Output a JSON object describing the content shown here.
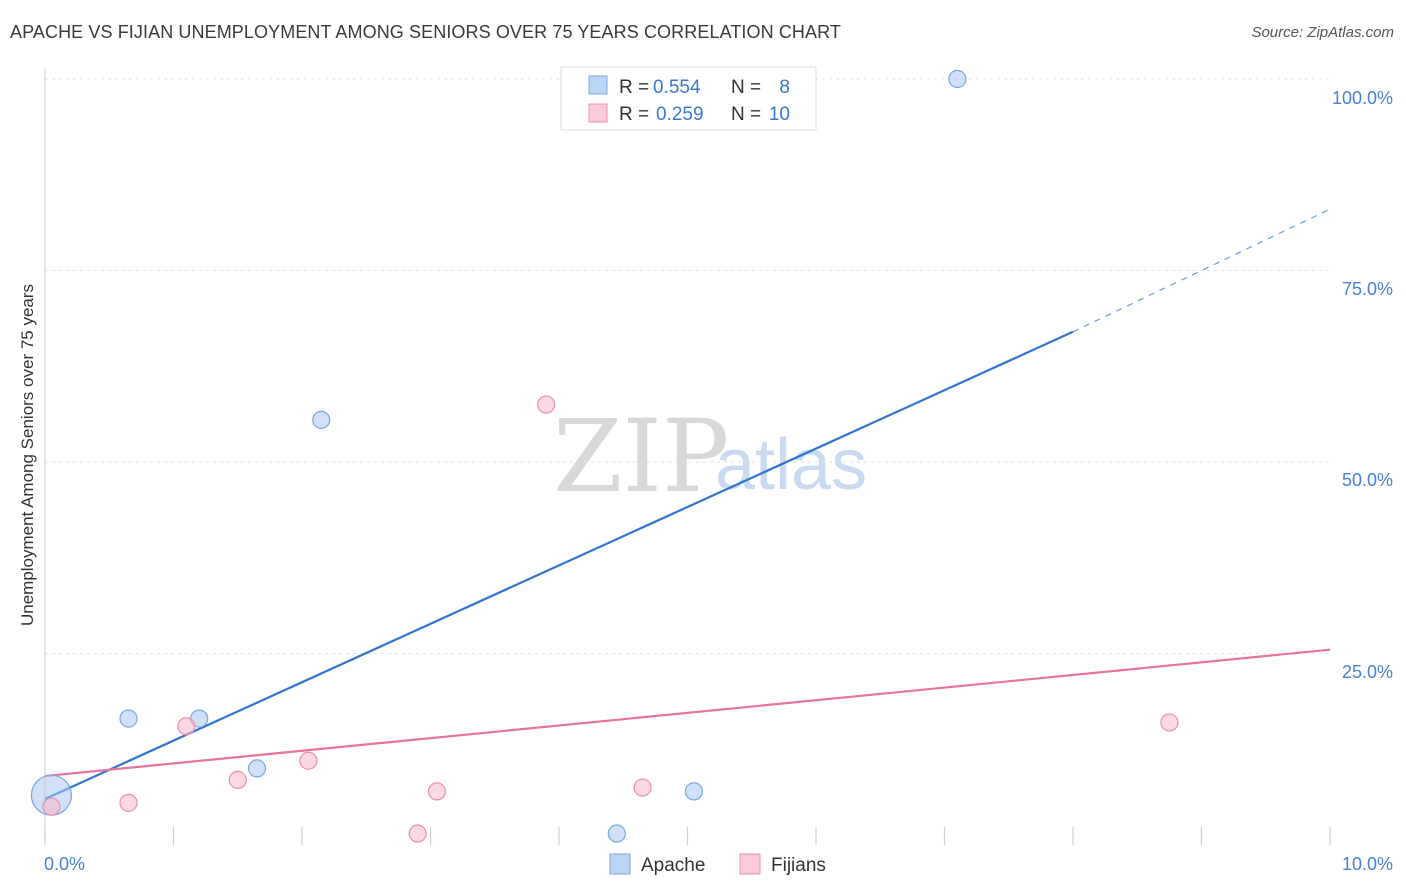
{
  "chart_data": {
    "type": "scatter",
    "title": "APACHE VS FIJIAN UNEMPLOYMENT AMONG SENIORS OVER 75 YEARS CORRELATION CHART",
    "source": "Source: ZipAtlas.com",
    "xlabel": "",
    "ylabel": "Unemployment Among Seniors over 75 years",
    "xlim": [
      0,
      10
    ],
    "ylim": [
      0,
      100
    ],
    "x_tick_labels": {
      "left": "0.0%",
      "right": "10.0%"
    },
    "y_ticks": [
      {
        "value": 25,
        "label": "25.0%"
      },
      {
        "value": 50,
        "label": "50.0%"
      },
      {
        "value": 75,
        "label": "75.0%"
      },
      {
        "value": 100,
        "label": "100.0%"
      }
    ],
    "grid": true,
    "watermark": {
      "zip": "ZIP",
      "atlas": "atlas"
    },
    "legend": {
      "placement": "top-center",
      "entries": [
        {
          "series": "Apache",
          "r_label": "R =",
          "r_value": "0.554",
          "n_label": "N =",
          "n_value": "8"
        },
        {
          "series": "Fijians",
          "r_label": "R =",
          "r_value": "0.259",
          "n_label": "N =",
          "n_value": "10"
        }
      ]
    },
    "series": [
      {
        "name": "Apache",
        "color": "#a9c8f0",
        "stroke": "#7aa7e0",
        "line_color": "#2f74d0",
        "points": [
          {
            "x": 0.05,
            "y": 6.5,
            "size": "large"
          },
          {
            "x": 0.65,
            "y": 16.5
          },
          {
            "x": 1.2,
            "y": 16.5
          },
          {
            "x": 1.65,
            "y": 10.0
          },
          {
            "x": 2.15,
            "y": 55.5
          },
          {
            "x": 4.45,
            "y": 1.5
          },
          {
            "x": 5.05,
            "y": 7.0
          },
          {
            "x": 7.1,
            "y": 100.0
          }
        ],
        "trend": {
          "x0": 0.0,
          "y0": 6.0,
          "x1": 8.0,
          "y1": 67.0,
          "dash_to_x": 10.0,
          "dash_to_y": 83.0
        }
      },
      {
        "name": "Fijians",
        "color": "#f7b8cb",
        "stroke": "#ec8fab",
        "line_color": "#e8739b",
        "points": [
          {
            "x": 0.05,
            "y": 5.0
          },
          {
            "x": 0.65,
            "y": 5.5
          },
          {
            "x": 1.1,
            "y": 15.5
          },
          {
            "x": 1.5,
            "y": 8.5
          },
          {
            "x": 2.05,
            "y": 11.0
          },
          {
            "x": 2.9,
            "y": 1.5
          },
          {
            "x": 3.05,
            "y": 7.0
          },
          {
            "x": 3.9,
            "y": 57.5
          },
          {
            "x": 4.65,
            "y": 7.5
          },
          {
            "x": 8.75,
            "y": 16.0
          }
        ],
        "trend": {
          "x0": 0.0,
          "y0": 9.0,
          "x1": 10.0,
          "y1": 25.5
        }
      }
    ]
  }
}
